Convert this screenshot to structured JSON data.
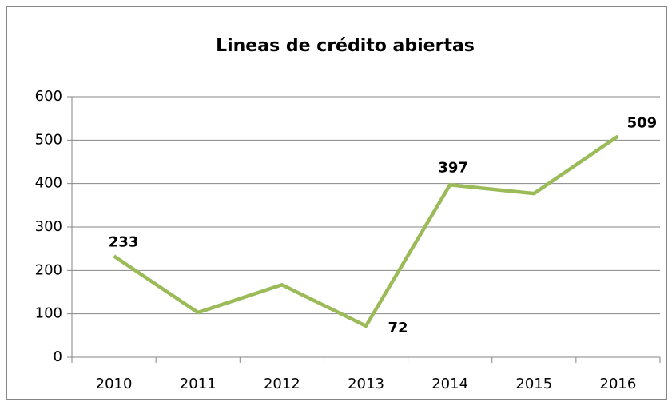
{
  "chart_data": {
    "type": "line",
    "title": "Lineas de crédito abiertas",
    "categories": [
      "2010",
      "2011",
      "2012",
      "2013",
      "2014",
      "2015",
      "2016"
    ],
    "series": [
      {
        "name": "Lineas de crédito abiertas",
        "color": "#9bbb59",
        "values": [
          233,
          103,
          167,
          72,
          397,
          377,
          509
        ],
        "value_labels": [
          "233",
          null,
          null,
          "72",
          "397",
          null,
          "509"
        ]
      }
    ],
    "ylim": [
      0,
      600
    ],
    "yticks": [
      0,
      100,
      200,
      300,
      400,
      500,
      600
    ],
    "grid": true
  }
}
